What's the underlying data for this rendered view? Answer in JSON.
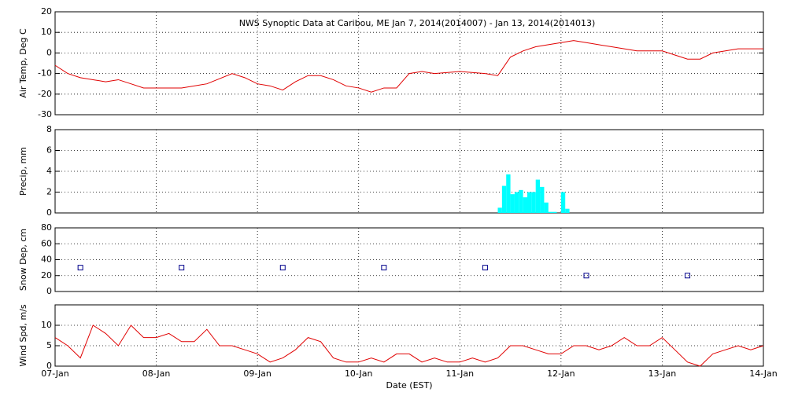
{
  "title": "NWS Synoptic Data at Caribou, ME   Jan  7, 2014(2014007) - Jan 13, 2014(2014013)",
  "x_label": "Date (EST)",
  "x_axis": {
    "xlim": [
      0,
      168
    ],
    "xticks": [
      {
        "value": 0,
        "label": "07-Jan"
      },
      {
        "value": 24,
        "label": "08-Jan"
      },
      {
        "value": 48,
        "label": "09-Jan"
      },
      {
        "value": 72,
        "label": "10-Jan"
      },
      {
        "value": 96,
        "label": "11-Jan"
      },
      {
        "value": 120,
        "label": "12-Jan"
      },
      {
        "value": 144,
        "label": "13-Jan"
      },
      {
        "value": 168,
        "label": "14-Jan"
      }
    ]
  },
  "chart_data": [
    {
      "type": "line",
      "y_label": "Air Temp, Deg C",
      "color": "#e00000",
      "ylim": [
        -30,
        20
      ],
      "yticks": [
        -30,
        -20,
        -10,
        0,
        10,
        20
      ],
      "x": [
        0,
        3,
        6,
        9,
        12,
        15,
        18,
        21,
        24,
        30,
        36,
        42,
        45,
        48,
        51,
        54,
        57,
        60,
        63,
        66,
        69,
        72,
        75,
        78,
        81,
        84,
        87,
        90,
        96,
        102,
        105,
        108,
        111,
        114,
        117,
        120,
        123,
        126,
        132,
        138,
        144,
        147,
        150,
        153,
        156,
        162,
        168
      ],
      "values": [
        -6,
        -10,
        -12,
        -13,
        -14,
        -13,
        -15,
        -17,
        -17,
        -17,
        -15,
        -10,
        -12,
        -15,
        -16,
        -18,
        -14,
        -11,
        -11,
        -13,
        -16,
        -17,
        -19,
        -17,
        -17,
        -10,
        -9,
        -10,
        -9,
        -10,
        -11,
        -2,
        1,
        3,
        4,
        5,
        6,
        5,
        3,
        1,
        1,
        -1,
        -3,
        -3,
        0,
        2,
        2
      ]
    },
    {
      "type": "histogram",
      "y_label": "Precip, mm",
      "color": "#00ffff",
      "ylim": [
        0,
        8
      ],
      "yticks": [
        0,
        2,
        4,
        6,
        8
      ],
      "bins": [
        105,
        106,
        107,
        108,
        109,
        110,
        111,
        112,
        113,
        114,
        115,
        116,
        117,
        118,
        119,
        120,
        121,
        122
      ],
      "values": [
        0.5,
        2.6,
        3.7,
        1.8,
        2,
        2.2,
        1.5,
        2,
        2,
        3.2,
        2.5,
        1,
        0.1,
        0.1,
        0,
        2,
        0.4
      ]
    },
    {
      "type": "scatter",
      "y_label": "Snow Dep, cm",
      "color": "#00008b",
      "ylim": [
        0,
        80
      ],
      "yticks": [
        0,
        20,
        40,
        60,
        80
      ],
      "x": [
        6,
        30,
        54,
        78,
        102,
        126,
        150
      ],
      "values": [
        30,
        30,
        30,
        30,
        30,
        20,
        20
      ]
    },
    {
      "type": "line",
      "y_label": "Wind Spd, m/s",
      "color": "#e00000",
      "ylim": [
        0,
        15
      ],
      "yticks": [
        0,
        5,
        10
      ],
      "x": [
        0,
        3,
        6,
        9,
        12,
        15,
        18,
        21,
        24,
        27,
        30,
        33,
        36,
        39,
        42,
        45,
        48,
        51,
        54,
        57,
        60,
        63,
        66,
        69,
        72,
        75,
        78,
        81,
        84,
        87,
        90,
        93,
        96,
        99,
        102,
        105,
        108,
        111,
        114,
        117,
        120,
        123,
        126,
        129,
        132,
        135,
        138,
        141,
        144,
        147,
        150,
        153,
        156,
        159,
        162,
        165,
        168
      ],
      "values": [
        7,
        5,
        2,
        10,
        8,
        5,
        10,
        7,
        7,
        8,
        6,
        6,
        9,
        5,
        5,
        4,
        3,
        1,
        2,
        4,
        7,
        6,
        2,
        1,
        1,
        2,
        1,
        3,
        3,
        1,
        2,
        1,
        1,
        2,
        1,
        2,
        5,
        5,
        4,
        3,
        3,
        5,
        5,
        4,
        5,
        7,
        5,
        5,
        7,
        4,
        1,
        0,
        3,
        4,
        5,
        4,
        5
      ]
    }
  ]
}
